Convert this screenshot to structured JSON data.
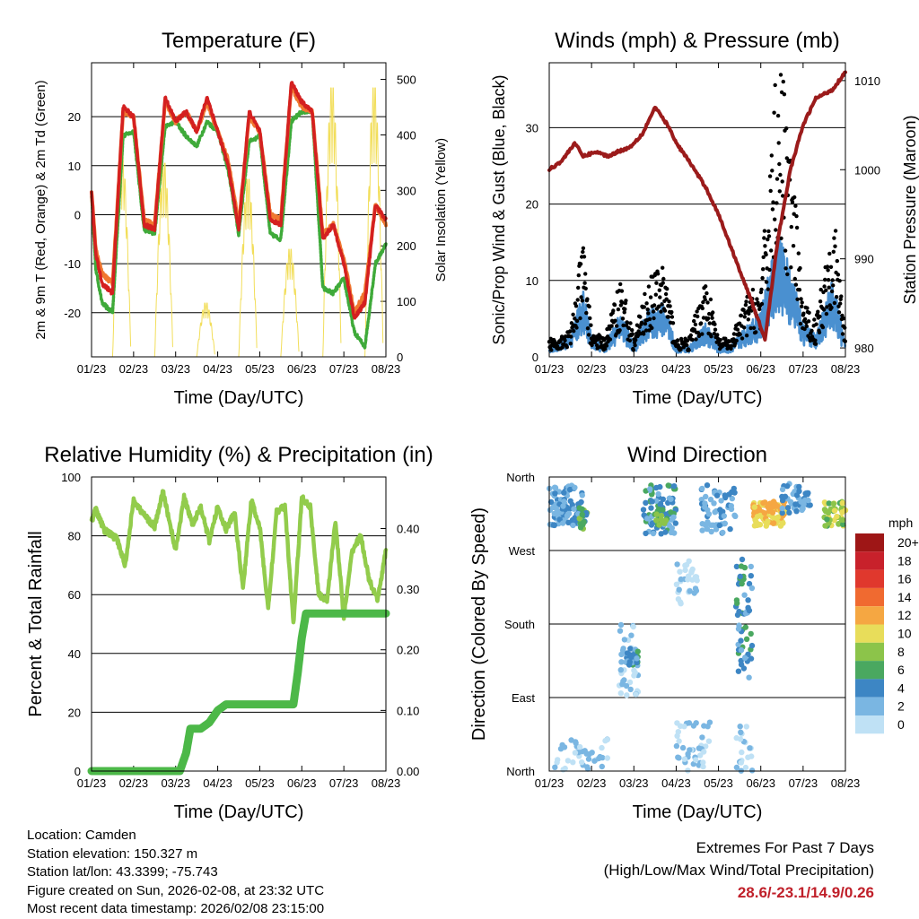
{
  "chart_data": [
    {
      "type": "line",
      "title": "Temperature (F)",
      "xlabel": "Time (Day/UTC)",
      "ylabel": "2m & 9m T (Red, Orange) & 2m Td (Green)",
      "ylabel_right": "Solar Insolation (Yellow)",
      "ylim": [
        -29,
        31
      ],
      "yticks": [
        -20,
        -10,
        0,
        10,
        20
      ],
      "ylim_right": [
        0,
        530
      ],
      "yticks_right": [
        0,
        100,
        200,
        300,
        400,
        500
      ],
      "x_tick_labels": [
        "01/23",
        "02/23",
        "03/23",
        "04/23",
        "05/23",
        "06/23",
        "07/23",
        "08/23"
      ],
      "x_range_days": [
        0,
        7
      ],
      "colors": {
        "temp_2m": "#d42020",
        "temp_9m": "#f07830",
        "dewpoint": "#3faa3a",
        "solar": "#f2de5a"
      },
      "series": [
        {
          "name": "2m T",
          "x": [
            0,
            0.1,
            0.25,
            0.5,
            0.75,
            1,
            1.25,
            1.5,
            1.75,
            2,
            2.25,
            2.5,
            2.75,
            3,
            3.25,
            3.5,
            3.75,
            4,
            4.25,
            4.5,
            4.75,
            5,
            5.25,
            5.5,
            5.75,
            6,
            6.25,
            6.5,
            6.75,
            7
          ],
          "values": [
            5,
            -8,
            -14,
            -16,
            22,
            20,
            -2,
            -3,
            24,
            19,
            21,
            17,
            24,
            17,
            10,
            -3,
            21,
            17,
            -1,
            -2,
            27,
            23,
            21,
            -5,
            -2,
            -10,
            -21,
            -18,
            2,
            -1
          ]
        },
        {
          "name": "9m T",
          "x": [
            0,
            0.1,
            0.25,
            0.5,
            0.75,
            1,
            1.25,
            1.5,
            1.75,
            2,
            2.25,
            2.5,
            2.75,
            3,
            3.25,
            3.5,
            3.75,
            4,
            4.25,
            4.5,
            4.75,
            5,
            5.25,
            5.5,
            5.75,
            6,
            6.25,
            6.5,
            6.75,
            7
          ],
          "values": [
            5,
            -7,
            -12,
            -14,
            21,
            20,
            -1,
            -2,
            23,
            19,
            21,
            17,
            23,
            17,
            11,
            -2,
            20,
            17,
            0,
            -1,
            26,
            22,
            21,
            -4,
            -2,
            -9,
            -20,
            -16,
            2,
            -2
          ]
        },
        {
          "name": "2m Td",
          "x": [
            0,
            0.1,
            0.25,
            0.5,
            0.75,
            1,
            1.25,
            1.5,
            1.75,
            2,
            2.25,
            2.5,
            2.75,
            3,
            3.25,
            3.5,
            3.75,
            4,
            4.25,
            4.5,
            4.75,
            5,
            5.25,
            5.5,
            5.75,
            6,
            6.25,
            6.5,
            6.75,
            7
          ],
          "values": [
            4,
            -11,
            -18,
            -20,
            16,
            17,
            -3,
            -4,
            18,
            19,
            16,
            14,
            19,
            17,
            9,
            -4,
            15,
            16,
            -4,
            -5,
            19,
            21,
            21,
            -15,
            -16,
            -13,
            -24,
            -27,
            -10,
            -6
          ]
        },
        {
          "name": "Solar Insolation",
          "days": [
            0,
            1,
            2,
            3,
            4,
            5,
            6,
            7
          ],
          "peaks": [
            380,
            360,
            100,
            330,
            200,
            500,
            500,
            500
          ]
        }
      ]
    },
    {
      "type": "line",
      "title": "Winds (mph) & Pressure (mb)",
      "xlabel": "Time (Day/UTC)",
      "ylabel": "Sonic/Prop Wind & Gust (Blue, Black)",
      "ylabel_right": "Station Pressure (Maroon)",
      "ylim": [
        0,
        38.5
      ],
      "yticks": [
        0,
        10,
        20,
        30
      ],
      "ylim_right": [
        979,
        1012
      ],
      "yticks_right": [
        980,
        990,
        1000,
        1010
      ],
      "x_tick_labels": [
        "01/23",
        "02/23",
        "03/23",
        "04/23",
        "05/23",
        "06/23",
        "07/23",
        "08/23"
      ],
      "x_range_days": [
        0,
        7
      ],
      "colors": {
        "wind": "#4a90d0",
        "gust": "#000000",
        "pressure": "#9b1b1b"
      },
      "series": [
        {
          "name": "Station Pressure",
          "x": [
            0,
            0.3,
            0.6,
            0.8,
            1.1,
            1.4,
            1.6,
            1.9,
            2.2,
            2.5,
            2.8,
            3.0,
            3.3,
            3.7,
            4.0,
            4.4,
            4.8,
            5.1,
            5.4,
            5.7,
            6.0,
            6.3,
            6.7,
            7.0
          ],
          "values": [
            1000,
            1001,
            1003,
            1001.5,
            1002,
            1001.5,
            1002,
            1002.5,
            1004,
            1007,
            1005,
            1003,
            1001,
            998,
            995,
            990,
            985,
            981,
            992,
            1000,
            1005,
            1008,
            1009,
            1011
          ]
        },
        {
          "name": "Sonic Wind",
          "x": [
            0,
            0.5,
            0.8,
            1,
            1.3,
            1.7,
            2,
            2.3,
            2.7,
            3,
            3.3,
            3.7,
            4,
            4.3,
            4.7,
            5,
            5.4,
            5.7,
            6,
            6.3,
            6.7,
            7
          ],
          "values": [
            1,
            2,
            6,
            2,
            1,
            4,
            1,
            4,
            5,
            1,
            1,
            3,
            1,
            1,
            3,
            4,
            11,
            8,
            3,
            2,
            7,
            1
          ]
        },
        {
          "name": "Gust",
          "x": [
            0,
            0.5,
            0.8,
            1,
            1.3,
            1.7,
            2,
            2.3,
            2.7,
            3,
            3.3,
            3.7,
            4,
            4.3,
            4.7,
            5,
            5.4,
            5.7,
            6,
            6.3,
            6.7,
            7
          ],
          "values": [
            2,
            3,
            13,
            3,
            2,
            9,
            2,
            8,
            11,
            2,
            2,
            9,
            2,
            2,
            7,
            8,
            35,
            24,
            6,
            4,
            17,
            3
          ]
        }
      ]
    },
    {
      "type": "line",
      "title": "Relative Humidity (%) & Precipitation (in)",
      "xlabel": "Time (Day/UTC)",
      "ylabel": "Percent & Total Rainfall",
      "ylim": [
        0,
        100
      ],
      "yticks": [
        0,
        20,
        40,
        60,
        80,
        100
      ],
      "ylim_right": [
        0,
        0.485
      ],
      "yticks_right": [
        "0.00",
        "0.10",
        "0.20",
        "0.30",
        "0.40"
      ],
      "x_tick_labels": [
        "01/23",
        "02/23",
        "03/23",
        "04/23",
        "05/23",
        "06/23",
        "07/23",
        "08/23"
      ],
      "x_range_days": [
        0,
        7
      ],
      "colors": {
        "rh": "#92cc4c",
        "precip": "#4cb848"
      },
      "series": [
        {
          "name": "Relative Humidity",
          "x": [
            0,
            0.1,
            0.3,
            0.6,
            0.8,
            1.0,
            1.2,
            1.5,
            1.7,
            2.0,
            2.2,
            2.4,
            2.6,
            2.8,
            3.0,
            3.2,
            3.4,
            3.6,
            3.8,
            4.0,
            4.2,
            4.4,
            4.6,
            4.8,
            5.0,
            5.2,
            5.4,
            5.6,
            5.8,
            6.0,
            6.2,
            6.4,
            6.6,
            6.8,
            7.0
          ],
          "values": [
            85,
            89,
            82,
            79,
            70,
            92,
            88,
            83,
            95,
            75,
            93,
            84,
            90,
            78,
            90,
            82,
            88,
            62,
            92,
            83,
            55,
            88,
            90,
            50,
            93,
            90,
            60,
            58,
            85,
            52,
            75,
            80,
            65,
            58,
            75
          ]
        },
        {
          "name": "Total Precipitation",
          "x": [
            0,
            2.1,
            2.25,
            2.35,
            2.6,
            2.8,
            3.0,
            3.2,
            3.4,
            4.8,
            4.9,
            5.0,
            5.1,
            7.0
          ],
          "values": [
            0,
            0,
            0.03,
            0.07,
            0.07,
            0.08,
            0.1,
            0.11,
            0.11,
            0.11,
            0.16,
            0.22,
            0.26,
            0.26
          ]
        }
      ]
    },
    {
      "type": "scatter",
      "title": "Wind Direction",
      "xlabel": "Time (Day/UTC)",
      "ylabel": "Direction (Colored By Speed)",
      "y_tick_labels": [
        "North",
        "East",
        "South",
        "West",
        "North"
      ],
      "ylim": [
        0,
        360
      ],
      "x_tick_labels": [
        "01/23",
        "02/23",
        "03/23",
        "04/23",
        "05/23",
        "06/23",
        "07/23",
        "08/23"
      ],
      "x_range_days": [
        0,
        7
      ],
      "colorbar": {
        "title": "mph",
        "labels": [
          "20+",
          "18",
          "16",
          "14",
          "12",
          "10",
          "8",
          "6",
          "4",
          "2",
          "0"
        ],
        "colors": [
          "#9e1616",
          "#c8212b",
          "#e0382d",
          "#f06a30",
          "#f5a742",
          "#e8dd5a",
          "#8cc44a",
          "#4aa860",
          "#3d86c4",
          "#7ab6e2",
          "#bfe1f5"
        ]
      },
      "clusters": [
        {
          "x0": 0.0,
          "x1": 0.8,
          "dir0": 300,
          "dir1": 350,
          "speed": 3,
          "n": 90
        },
        {
          "x0": 0.7,
          "x1": 0.9,
          "dir0": 295,
          "dir1": 325,
          "speed": 6,
          "n": 18
        },
        {
          "x0": 0.0,
          "x1": 1.4,
          "dir0": 0,
          "dir1": 40,
          "speed": 1,
          "n": 40
        },
        {
          "x0": 1.6,
          "x1": 2.1,
          "dir0": 90,
          "dir1": 180,
          "speed": 1,
          "n": 40
        },
        {
          "x0": 1.8,
          "x1": 2.1,
          "dir0": 130,
          "dir1": 150,
          "speed": 4,
          "n": 25
        },
        {
          "x0": 2.2,
          "x1": 3.0,
          "dir0": 290,
          "dir1": 350,
          "speed": 4,
          "n": 80
        },
        {
          "x0": 2.5,
          "x1": 2.8,
          "dir0": 300,
          "dir1": 325,
          "speed": 7,
          "n": 14
        },
        {
          "x0": 3.0,
          "x1": 3.5,
          "dir0": 200,
          "dir1": 260,
          "speed": 1,
          "n": 30
        },
        {
          "x0": 3.0,
          "x1": 3.8,
          "dir0": 0,
          "dir1": 60,
          "speed": 1,
          "n": 40
        },
        {
          "x0": 3.6,
          "x1": 4.4,
          "dir0": 290,
          "dir1": 350,
          "speed": 3,
          "n": 60
        },
        {
          "x0": 4.4,
          "x1": 4.8,
          "dir0": 110,
          "dir1": 180,
          "speed": 4,
          "n": 25
        },
        {
          "x0": 4.4,
          "x1": 4.8,
          "dir0": 190,
          "dir1": 260,
          "speed": 4,
          "n": 30
        },
        {
          "x0": 4.4,
          "x1": 4.8,
          "dir0": 0,
          "dir1": 60,
          "speed": 1,
          "n": 20
        },
        {
          "x0": 4.8,
          "x1": 5.6,
          "dir0": 300,
          "dir1": 330,
          "speed": 11,
          "n": 90
        },
        {
          "x0": 5.5,
          "x1": 6.2,
          "dir0": 315,
          "dir1": 355,
          "speed": 3,
          "n": 45
        },
        {
          "x0": 6.5,
          "x1": 7.0,
          "dir0": 300,
          "dir1": 330,
          "speed": 8,
          "n": 40
        }
      ]
    }
  ],
  "info": {
    "location": "Location: Camden",
    "elevation": "Station elevation: 150.327 m",
    "latlon": "Station lat/lon: 43.3399; -75.743",
    "created": "Figure created on Sun, 2026-02-08, at 23:32 UTC",
    "recent": "Most recent data timestamp: 2026/02/08 23:15:00"
  },
  "extremes": {
    "title": "Extremes For Past 7 Days",
    "subtitle": "(High/Low/Max Wind/Total Precipitation)",
    "values": "28.6/-23.1/14.9/0.26"
  }
}
